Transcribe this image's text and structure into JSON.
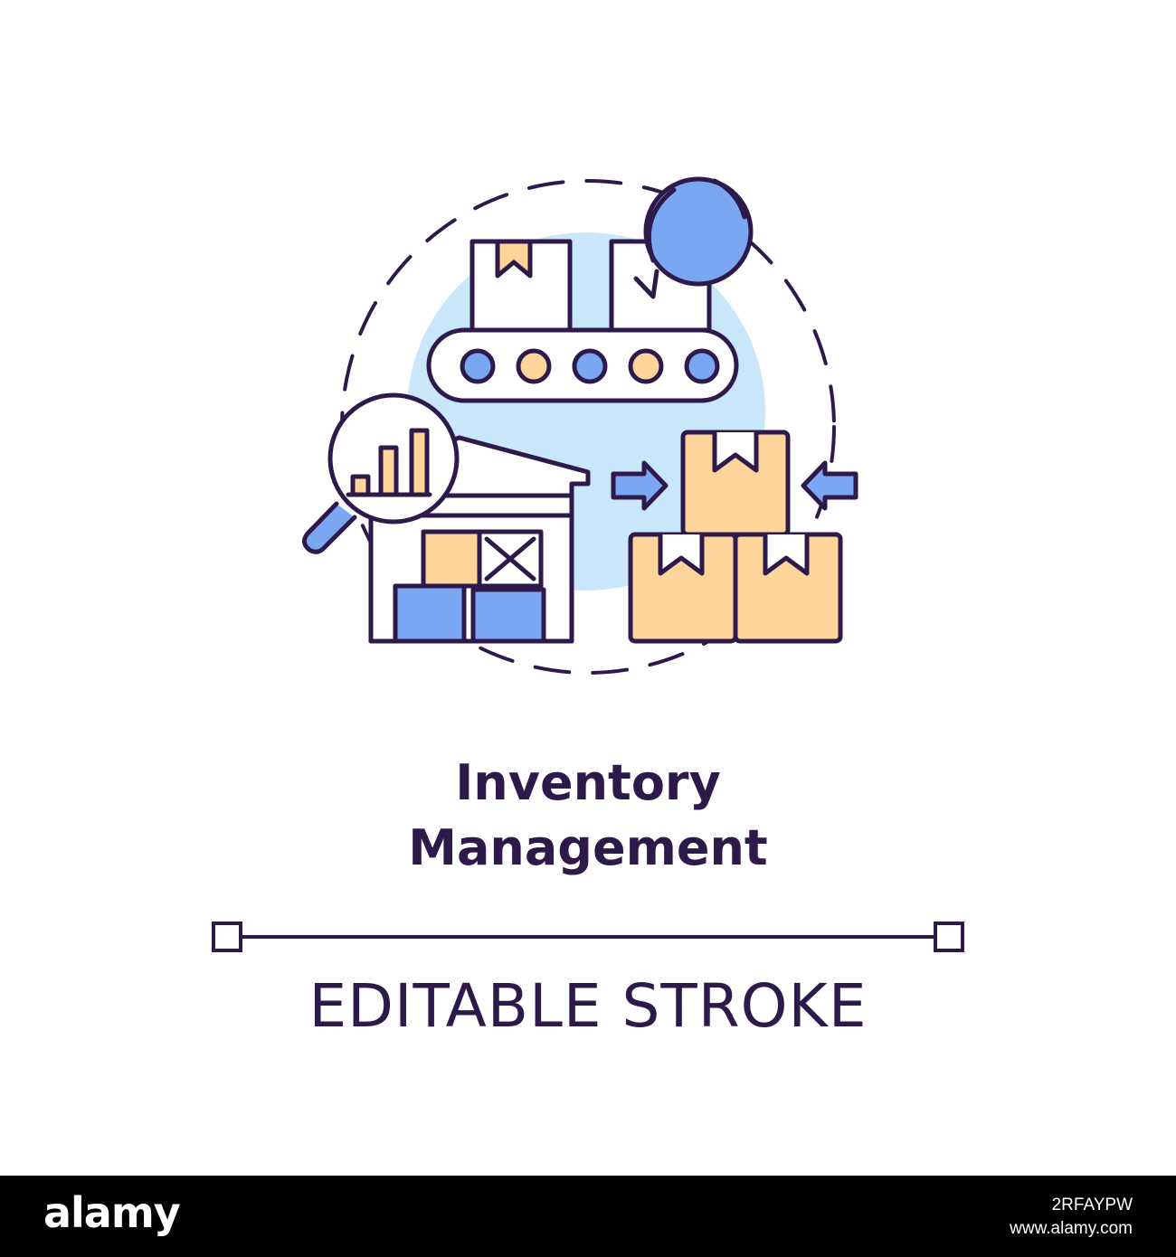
{
  "title": {
    "line1": "Inventory",
    "line2": "Management"
  },
  "caption": "EDITABLE STROKE",
  "footer": {
    "logo": "alamy",
    "image_id": "2RFAYPW",
    "site": "www.alamy.com"
  },
  "colors": {
    "outline": "#2e1a4a",
    "blue": "#7ba7f2",
    "light_blue": "#c9e6fb",
    "orange": "#fdd49a",
    "background": "#ffffff",
    "footer": "#000000"
  },
  "icons": [
    "conveyor-belt-icon",
    "cardboard-box-icon",
    "refresh-icon",
    "warehouse-icon",
    "magnifier-icon",
    "bar-chart-icon",
    "inward-arrow-icon"
  ]
}
